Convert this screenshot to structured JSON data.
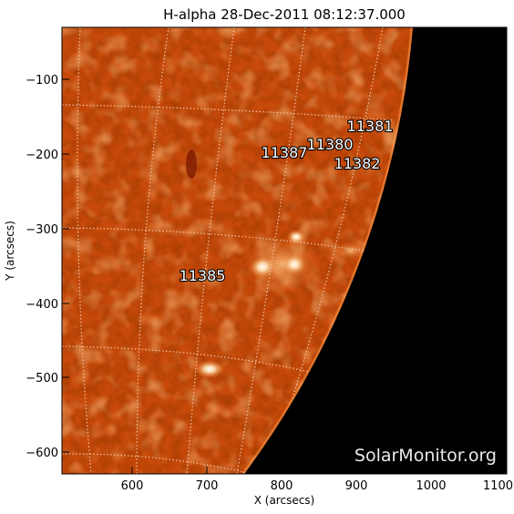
{
  "title": "H-alpha 28-Dec-2011 08:12:37.000",
  "x_axis": {
    "label": "X (arcsecs)",
    "ticks": [
      "600",
      "700",
      "800",
      "900",
      "1000",
      "1100"
    ],
    "tick_values": [
      600,
      700,
      800,
      900,
      1000,
      1100
    ],
    "range": [
      505,
      1100
    ]
  },
  "y_axis": {
    "label": "Y (arcsecs)",
    "ticks": [
      "−100",
      "−200",
      "−300",
      "−400",
      "−500",
      "−600"
    ],
    "tick_values": [
      -100,
      -200,
      -300,
      -400,
      -500,
      -600
    ],
    "range": [
      -630,
      -30
    ]
  },
  "regions": [
    {
      "number": "11381",
      "x": 935,
      "y": -160
    },
    {
      "number": "11380",
      "x": 873,
      "y": -183
    },
    {
      "number": "11387",
      "x": 843,
      "y": -195
    },
    {
      "number": "11382",
      "x": 940,
      "y": -205
    },
    {
      "number": "11385",
      "x": 708,
      "y": -362
    }
  ],
  "watermark": "SolarMonitor.org",
  "colors": {
    "disk": "#c84a0a",
    "sky": "#000000",
    "grid": "#f3c9a8",
    "label": "#ffffff"
  }
}
